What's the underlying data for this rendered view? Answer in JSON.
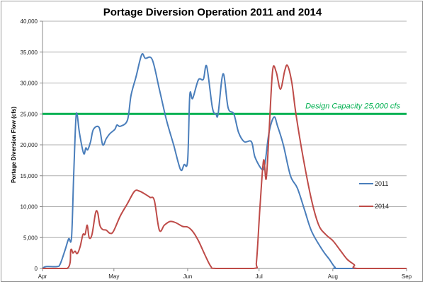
{
  "chart_data": {
    "type": "line",
    "title": "Portage Diversion Operation 2011 and 2014",
    "xlabel": "",
    "ylabel": "Portage Diversion Flow (cfs)",
    "x_unit": "days since Apr 1",
    "xlim": [
      0,
      153
    ],
    "ylim": [
      0,
      40000
    ],
    "grid": true,
    "legend_position": "right",
    "x_ticks": [
      {
        "label": "Apr",
        "day": 0
      },
      {
        "label": "May",
        "day": 30
      },
      {
        "label": "Jun",
        "day": 61
      },
      {
        "label": "Jul",
        "day": 91
      },
      {
        "label": "Aug",
        "day": 122
      },
      {
        "label": "Sep",
        "day": 153
      }
    ],
    "y_ticks": [
      {
        "label": "0",
        "value": 0
      },
      {
        "label": "5,000",
        "value": 5000
      },
      {
        "label": "10,000",
        "value": 10000
      },
      {
        "label": "15,000",
        "value": 15000
      },
      {
        "label": "20,000",
        "value": 20000
      },
      {
        "label": "25,000",
        "value": 25000
      },
      {
        "label": "30,000",
        "value": 30000
      },
      {
        "label": "35,000",
        "value": 35000
      },
      {
        "label": "40,000",
        "value": 40000
      }
    ],
    "reference_line": {
      "value": 25000,
      "label": "Design Capacity 25,000 cfs",
      "color": "#00b050"
    },
    "series": [
      {
        "name": "2011",
        "color": "#4a7ebb",
        "points": [
          [
            0,
            0
          ],
          [
            1.5,
            300
          ],
          [
            6,
            300
          ],
          [
            7.4,
            700
          ],
          [
            9.5,
            3000
          ],
          [
            11,
            4800
          ],
          [
            12.2,
            5000
          ],
          [
            13.1,
            15000
          ],
          [
            14,
            24000
          ],
          [
            14.6,
            24800
          ],
          [
            15.5,
            22000
          ],
          [
            17.3,
            18600
          ],
          [
            18.2,
            19500
          ],
          [
            19,
            19200
          ],
          [
            20.2,
            20500
          ],
          [
            21.4,
            22500
          ],
          [
            23.8,
            22800
          ],
          [
            25.3,
            20000
          ],
          [
            26.8,
            21000
          ],
          [
            28.3,
            21800
          ],
          [
            30.4,
            22500
          ],
          [
            31.3,
            23200
          ],
          [
            32.7,
            23000
          ],
          [
            35.7,
            24000
          ],
          [
            37.2,
            28000
          ],
          [
            39.3,
            31000
          ],
          [
            41.7,
            34600
          ],
          [
            43.2,
            34000
          ],
          [
            46.1,
            33800
          ],
          [
            49.1,
            29000
          ],
          [
            52.1,
            24000
          ],
          [
            55.1,
            20000
          ],
          [
            58,
            16000
          ],
          [
            59.5,
            16800
          ],
          [
            61,
            17500
          ],
          [
            61.9,
            28000
          ],
          [
            63.1,
            27500
          ],
          [
            65.5,
            30500
          ],
          [
            67.6,
            30600
          ],
          [
            69,
            32700
          ],
          [
            71.4,
            26000
          ],
          [
            72.9,
            25000
          ],
          [
            73.8,
            25000
          ],
          [
            75.9,
            31500
          ],
          [
            78,
            26000
          ],
          [
            80.4,
            25000
          ],
          [
            82.4,
            22000
          ],
          [
            84.8,
            20500
          ],
          [
            87.8,
            20500
          ],
          [
            89.3,
            18000
          ],
          [
            92.3,
            16000
          ],
          [
            93.5,
            17000
          ],
          [
            95.2,
            22000
          ],
          [
            97.3,
            24500
          ],
          [
            98.8,
            23000
          ],
          [
            101.2,
            20000
          ],
          [
            104.2,
            15000
          ],
          [
            107.1,
            13000
          ],
          [
            110.1,
            9500
          ],
          [
            113.1,
            6000
          ],
          [
            117.6,
            3000
          ],
          [
            120.5,
            1500
          ],
          [
            122.9,
            200
          ],
          [
            125,
            0
          ],
          [
            153,
            0
          ]
        ]
      },
      {
        "name": "2014",
        "color": "#be4b48",
        "points": [
          [
            0,
            0
          ],
          [
            10.4,
            0
          ],
          [
            11.9,
            3000
          ],
          [
            12.8,
            2500
          ],
          [
            13.7,
            2800
          ],
          [
            14.6,
            2400
          ],
          [
            15.8,
            3500
          ],
          [
            17,
            5500
          ],
          [
            17.9,
            5500
          ],
          [
            18.8,
            7000
          ],
          [
            19.6,
            5000
          ],
          [
            20.8,
            5500
          ],
          [
            22.3,
            9000
          ],
          [
            23.2,
            9000
          ],
          [
            24.1,
            7000
          ],
          [
            25.3,
            6300
          ],
          [
            26.8,
            6200
          ],
          [
            28.3,
            5700
          ],
          [
            29.8,
            6000
          ],
          [
            32.7,
            8500
          ],
          [
            35.7,
            10500
          ],
          [
            38.7,
            12500
          ],
          [
            40.8,
            12500
          ],
          [
            43.2,
            12000
          ],
          [
            45.2,
            11500
          ],
          [
            47,
            11000
          ],
          [
            49.1,
            6200
          ],
          [
            51.2,
            7000
          ],
          [
            53.6,
            7600
          ],
          [
            56,
            7400
          ],
          [
            58.9,
            6800
          ],
          [
            61,
            6700
          ],
          [
            63.1,
            6000
          ],
          [
            65.5,
            4500
          ],
          [
            68.5,
            2000
          ],
          [
            70.8,
            300
          ],
          [
            72.9,
            0
          ],
          [
            88.7,
            0
          ],
          [
            89.9,
            1000
          ],
          [
            91.4,
            10000
          ],
          [
            92.9,
            17500
          ],
          [
            94,
            14500
          ],
          [
            95.2,
            22000
          ],
          [
            96.7,
            32000
          ],
          [
            98.2,
            31800
          ],
          [
            100,
            29000
          ],
          [
            101.8,
            32000
          ],
          [
            103,
            32800
          ],
          [
            104.8,
            30000
          ],
          [
            106.5,
            25000
          ],
          [
            109.5,
            18000
          ],
          [
            113.1,
            11000
          ],
          [
            116.1,
            7000
          ],
          [
            119,
            5500
          ],
          [
            122,
            4500
          ],
          [
            125,
            3000
          ],
          [
            128,
            1500
          ],
          [
            131,
            600
          ],
          [
            132.4,
            0
          ],
          [
            153,
            0
          ]
        ]
      }
    ]
  }
}
